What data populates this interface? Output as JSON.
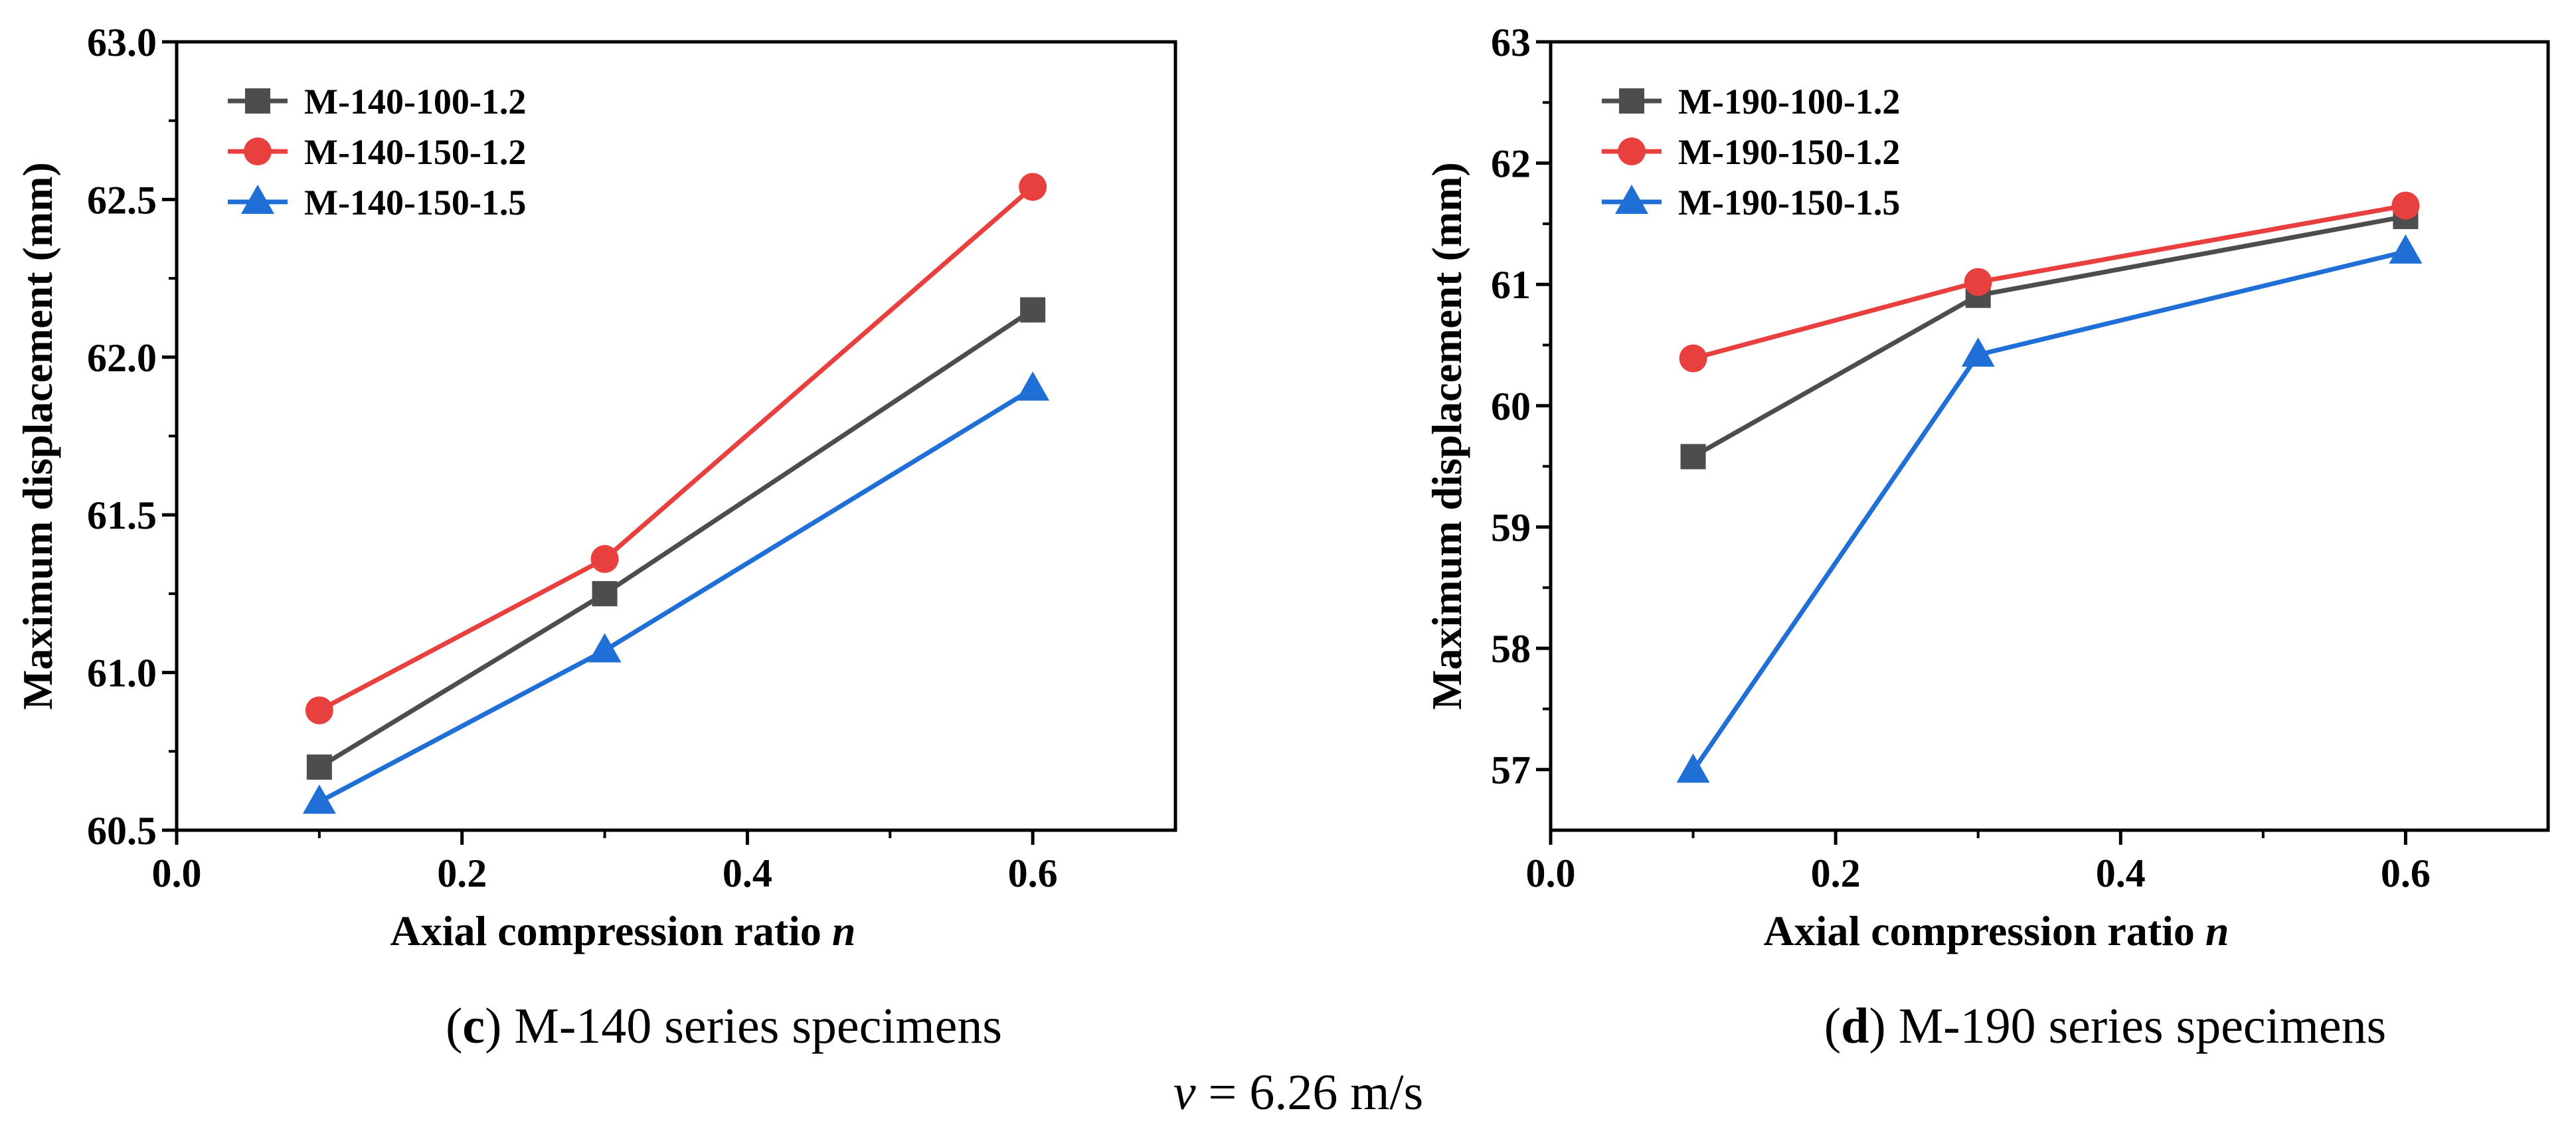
{
  "figure": {
    "caption_left": {
      "letter": "c",
      "text": " M-140 series specimens"
    },
    "caption_right": {
      "letter": "d",
      "text": " M-190 series specimens"
    },
    "velocity": {
      "symbol": "v",
      "text": " = 6.26 m/s"
    }
  },
  "chart_data": [
    {
      "type": "line",
      "title": "(c) M-140 series specimens",
      "xlabel": "Axial compression ratio",
      "xlabel_italic": "n",
      "ylabel": "Maximum displacement (mm)",
      "xlim": [
        0.0,
        0.7
      ],
      "ylim": [
        60.5,
        63.0
      ],
      "xticks": [
        0.0,
        0.2,
        0.4,
        0.6
      ],
      "xtick_labels": [
        "0.0",
        "0.2",
        "0.4",
        "0.6"
      ],
      "yticks": [
        60.5,
        61.0,
        61.5,
        62.0,
        62.5,
        63.0
      ],
      "ytick_labels": [
        "60.5",
        "61.0",
        "61.5",
        "62.0",
        "62.5",
        "63.0"
      ],
      "grid": false,
      "legend_position": "top-left",
      "x": [
        0.1,
        0.3,
        0.6
      ],
      "series": [
        {
          "name": "M-140-100-1.2",
          "marker": "square",
          "color": "#4d4d4d",
          "values": [
            60.7,
            61.25,
            62.15
          ]
        },
        {
          "name": "M-140-150-1.2",
          "marker": "circle",
          "color": "#e8403f",
          "values": [
            60.88,
            61.36,
            62.54
          ]
        },
        {
          "name": "M-140-150-1.5",
          "marker": "triangle",
          "color": "#1f6fd6",
          "values": [
            60.59,
            61.07,
            61.9
          ]
        }
      ]
    },
    {
      "type": "line",
      "title": "(d) M-190 series specimens",
      "xlabel": "Axial compression ratio",
      "xlabel_italic": "n",
      "ylabel": "Maximum displacement (mm)",
      "xlim": [
        0.0,
        0.7
      ],
      "ylim": [
        56.5,
        63.0
      ],
      "xticks": [
        0.0,
        0.2,
        0.4,
        0.6
      ],
      "xtick_labels": [
        "0.0",
        "0.2",
        "0.4",
        "0.6"
      ],
      "yticks": [
        57,
        58,
        59,
        60,
        61,
        62,
        63
      ],
      "ytick_labels": [
        "57",
        "58",
        "59",
        "60",
        "61",
        "62",
        "63"
      ],
      "grid": false,
      "legend_position": "top-left",
      "x": [
        0.1,
        0.3,
        0.6
      ],
      "series": [
        {
          "name": "M-190-100-1.2",
          "marker": "square",
          "color": "#4d4d4d",
          "values": [
            59.58,
            60.91,
            61.56
          ]
        },
        {
          "name": "M-190-150-1.2",
          "marker": "circle",
          "color": "#e8403f",
          "values": [
            60.39,
            61.02,
            61.65
          ]
        },
        {
          "name": "M-190-150-1.5",
          "marker": "triangle",
          "color": "#1f6fd6",
          "values": [
            56.99,
            60.42,
            61.27
          ]
        }
      ]
    }
  ]
}
